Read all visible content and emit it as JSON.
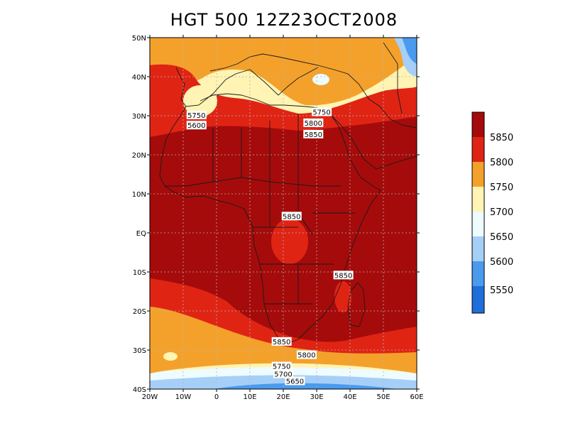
{
  "title": "HGT 500 12Z23OCT2008",
  "colors": {
    "c5550": "#1e6fd9",
    "c5600": "#4a9aee",
    "c5650": "#a6cff7",
    "c5700": "#eefbff",
    "c5750": "#fff4b3",
    "c5800": "#f4a12b",
    "c5850": "#e02414",
    "c5900": "#a50b0b",
    "coast": "#1a1a1a",
    "grid": "#b5b5b5"
  },
  "x_ticks": [
    "20W",
    "10W",
    "0",
    "10E",
    "20E",
    "30E",
    "40E",
    "50E",
    "60E"
  ],
  "y_ticks": [
    "50N",
    "40N",
    "30N",
    "20N",
    "10N",
    "EQ",
    "10S",
    "20S",
    "30S",
    "40S"
  ],
  "contour_labels": [
    {
      "text": "5750",
      "lon": -6,
      "lat": 30.2
    },
    {
      "text": "5600",
      "lon": -6,
      "lat": 27.6
    },
    {
      "text": "5750",
      "lon": 31.5,
      "lat": 31.0
    },
    {
      "text": "5800",
      "lon": 29,
      "lat": 28.2
    },
    {
      "text": "5850",
      "lon": 29,
      "lat": 25.3
    },
    {
      "text": "5850",
      "lon": 22.5,
      "lat": 4.3
    },
    {
      "text": "5850",
      "lon": 38,
      "lat": -10.8
    },
    {
      "text": "5850",
      "lon": 19.5,
      "lat": -27.8
    },
    {
      "text": "5800",
      "lon": 27,
      "lat": -31.2
    },
    {
      "text": "5750",
      "lon": 19.5,
      "lat": -34.1
    },
    {
      "text": "5700",
      "lon": 20,
      "lat": -36.1
    },
    {
      "text": "5650",
      "lon": 23.5,
      "lat": -37.9
    }
  ],
  "legend": {
    "labels": [
      "5850",
      "5800",
      "5750",
      "5700",
      "5650",
      "5600",
      "5550"
    ]
  }
}
